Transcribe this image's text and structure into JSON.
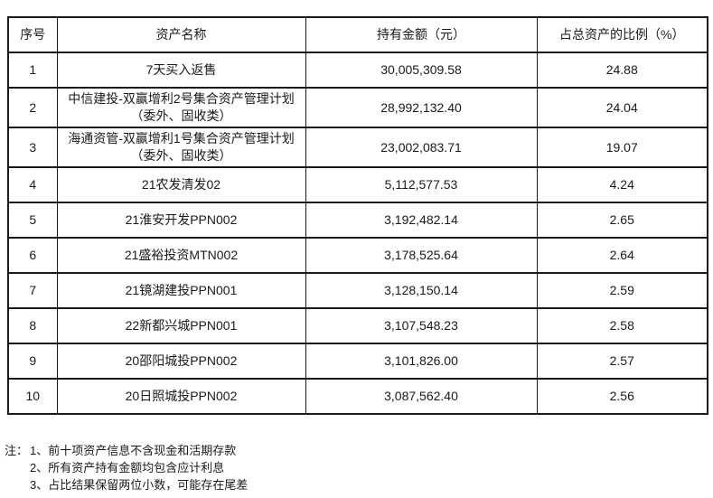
{
  "page": {
    "background_color": "#ffffff",
    "text_color": "#1a1a1a",
    "border_color": "#1a1a1a"
  },
  "table": {
    "headers": [
      "序号",
      "资产名称",
      "持有金额（元）",
      "占总资产的比例（%）"
    ],
    "rows": [
      {
        "no": "1",
        "name": "7天买入返售",
        "amount": "30,005,309.58",
        "pct": "24.88"
      },
      {
        "no": "2",
        "name": "中信建投-双赢增利2号集合资产管理计划（委外、固收类）",
        "amount": "28,992,132.40",
        "pct": "24.04"
      },
      {
        "no": "3",
        "name": "海通资管-双赢增利1号集合资产管理计划（委外、固收类）",
        "amount": "23,002,083.71",
        "pct": "19.07"
      },
      {
        "no": "4",
        "name": "21农发清发02",
        "amount": "5,112,577.53",
        "pct": "4.24"
      },
      {
        "no": "5",
        "name": "21淮安开发PPN002",
        "amount": "3,192,482.14",
        "pct": "2.65"
      },
      {
        "no": "6",
        "name": "21盛裕投资MTN002",
        "amount": "3,178,525.64",
        "pct": "2.64"
      },
      {
        "no": "7",
        "name": "21镜湖建投PPN001",
        "amount": "3,128,150.14",
        "pct": "2.59"
      },
      {
        "no": "8",
        "name": "22新都兴城PPN001",
        "amount": "3,107,548.23",
        "pct": "2.58"
      },
      {
        "no": "9",
        "name": "20邵阳城投PPN002",
        "amount": "3,101,826.00",
        "pct": "2.57"
      },
      {
        "no": "10",
        "name": "20日照城投PPN002",
        "amount": "3,087,562.40",
        "pct": "2.56"
      }
    ]
  },
  "notes": {
    "prefix": "注：",
    "items": [
      "1、前十项资产信息不含现金和活期存款",
      "2、所有资产持有金额均包含应计利息",
      "3、占比结果保留两位小数，可能存在尾差"
    ]
  }
}
